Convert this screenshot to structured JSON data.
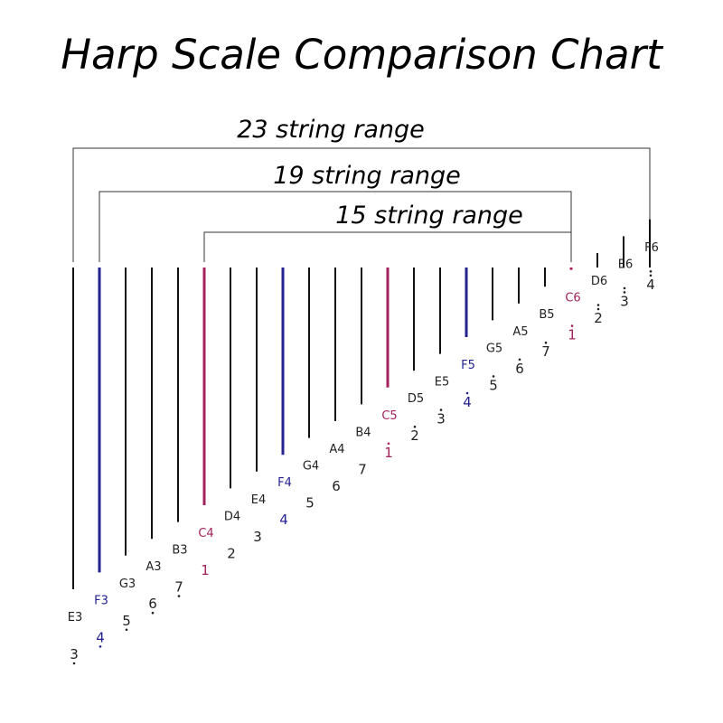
{
  "title": "Harp Scale Comparison Chart",
  "colors": {
    "default": "#111111",
    "blue": "#24228f",
    "red": "#a3225c",
    "text": "#222222"
  },
  "ranges": [
    {
      "label": "23 string range",
      "from": 0,
      "to": 22
    },
    {
      "label": "19 string range",
      "from": 1,
      "to": 19
    },
    {
      "label": "15 string range",
      "from": 5,
      "to": 19
    }
  ],
  "strings": [
    {
      "note": "E3",
      "number": "3",
      "octave": "low1",
      "color": "default"
    },
    {
      "note": "F3",
      "number": "4",
      "octave": "low1",
      "color": "blue"
    },
    {
      "note": "G3",
      "number": "5",
      "octave": "low1",
      "color": "default"
    },
    {
      "note": "A3",
      "number": "6",
      "octave": "low1",
      "color": "default"
    },
    {
      "note": "B3",
      "number": "7",
      "octave": "low1",
      "color": "default"
    },
    {
      "note": "C4",
      "number": "1",
      "octave": "mid",
      "color": "red"
    },
    {
      "note": "D4",
      "number": "2",
      "octave": "mid",
      "color": "default"
    },
    {
      "note": "E4",
      "number": "3",
      "octave": "mid",
      "color": "default"
    },
    {
      "note": "F4",
      "number": "4",
      "octave": "mid",
      "color": "blue"
    },
    {
      "note": "G4",
      "number": "5",
      "octave": "mid",
      "color": "default"
    },
    {
      "note": "A4",
      "number": "6",
      "octave": "mid",
      "color": "default"
    },
    {
      "note": "B4",
      "number": "7",
      "octave": "mid",
      "color": "default"
    },
    {
      "note": "C5",
      "number": "1",
      "octave": "high1",
      "color": "red"
    },
    {
      "note": "D5",
      "number": "2",
      "octave": "high1",
      "color": "default"
    },
    {
      "note": "E5",
      "number": "3",
      "octave": "high1",
      "color": "default"
    },
    {
      "note": "F5",
      "number": "4",
      "octave": "high1",
      "color": "blue"
    },
    {
      "note": "G5",
      "number": "5",
      "octave": "high1",
      "color": "default"
    },
    {
      "note": "A5",
      "number": "6",
      "octave": "high1",
      "color": "default"
    },
    {
      "note": "B5",
      "number": "7",
      "octave": "high1",
      "color": "default"
    },
    {
      "note": "C6",
      "number": "1",
      "octave": "high1",
      "color": "red"
    },
    {
      "note": "D6",
      "number": "2",
      "octave": "high2",
      "color": "default"
    },
    {
      "note": "E6",
      "number": "3",
      "octave": "high2",
      "color": "default"
    },
    {
      "note": "F6",
      "number": "4",
      "octave": "high2",
      "color": "default"
    }
  ]
}
